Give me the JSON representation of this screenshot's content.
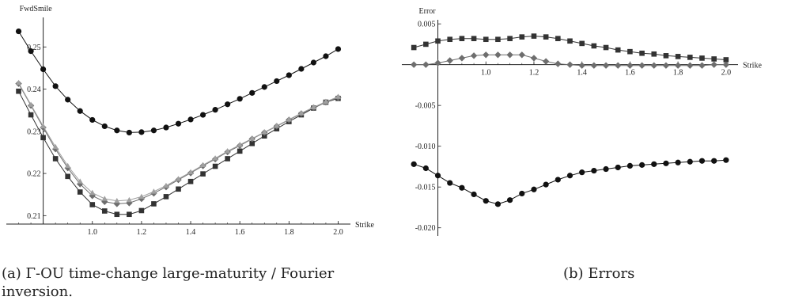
{
  "chart_data": [
    {
      "type": "line",
      "xlabel": "Strike",
      "ylabel": "FwdSmile",
      "xlim": [
        0.65,
        2.05
      ],
      "ylim": [
        0.208,
        0.257
      ],
      "xticks": [
        1.0,
        1.2,
        1.4,
        1.6,
        1.8,
        2.0
      ],
      "xtick_labels": [
        "1.0",
        "1.2",
        "1.4",
        "1.6",
        "1.8",
        "2.0"
      ],
      "yticks": [
        0.21,
        0.22,
        0.23,
        0.24,
        0.25
      ],
      "ytick_labels": [
        "0.21",
        "0.22",
        "0.23",
        "0.24",
        "0.25"
      ],
      "x_cross": 0.8,
      "y_cross": 0.208,
      "series": [
        {
          "marker": "circle",
          "color": "#111111",
          "x": [
            0.7,
            0.75,
            0.8,
            0.85,
            0.9,
            0.95,
            1.0,
            1.05,
            1.1,
            1.15,
            1.2,
            1.25,
            1.3,
            1.35,
            1.4,
            1.45,
            1.5,
            1.55,
            1.6,
            1.65,
            1.7,
            1.75,
            1.8,
            1.85,
            1.9,
            1.95,
            2.0
          ],
          "y": [
            0.2537,
            0.249,
            0.2447,
            0.2407,
            0.2375,
            0.2348,
            0.2327,
            0.2312,
            0.2302,
            0.2297,
            0.2298,
            0.2302,
            0.2309,
            0.2318,
            0.2328,
            0.2339,
            0.2351,
            0.2364,
            0.2377,
            0.2391,
            0.2405,
            0.2419,
            0.2433,
            0.2448,
            0.2463,
            0.2478,
            0.2495
          ]
        },
        {
          "marker": "square",
          "color": "#333333",
          "x": [
            0.7,
            0.75,
            0.8,
            0.85,
            0.9,
            0.95,
            1.0,
            1.05,
            1.1,
            1.15,
            1.2,
            1.25,
            1.3,
            1.35,
            1.4,
            1.45,
            1.5,
            1.55,
            1.6,
            1.65,
            1.7,
            1.75,
            1.8,
            1.85,
            1.9,
            1.95,
            2.0
          ],
          "y": [
            0.2395,
            0.2339,
            0.2285,
            0.2235,
            0.2193,
            0.2156,
            0.2126,
            0.2111,
            0.2103,
            0.2103,
            0.2112,
            0.2128,
            0.2145,
            0.2163,
            0.2181,
            0.2199,
            0.2217,
            0.2235,
            0.2253,
            0.2271,
            0.2289,
            0.2306,
            0.2323,
            0.2339,
            0.2355,
            0.2369,
            0.2378
          ]
        },
        {
          "marker": "diamond",
          "color": "#6e6e6e",
          "x": [
            0.7,
            0.75,
            0.8,
            0.85,
            0.9,
            0.95,
            1.0,
            1.05,
            1.1,
            1.15,
            1.2,
            1.25,
            1.3,
            1.35,
            1.4,
            1.45,
            1.5,
            1.55,
            1.6,
            1.65,
            1.7,
            1.75,
            1.8,
            1.85,
            1.9,
            1.95,
            2.0
          ],
          "y": [
            0.2413,
            0.2361,
            0.2309,
            0.2258,
            0.2213,
            0.2175,
            0.2147,
            0.2133,
            0.2128,
            0.213,
            0.214,
            0.2153,
            0.2168,
            0.2185,
            0.2201,
            0.2218,
            0.2234,
            0.2251,
            0.2266,
            0.2282,
            0.2297,
            0.2312,
            0.2327,
            0.2342,
            0.2356,
            0.2369,
            0.238
          ]
        },
        {
          "marker": "triangle",
          "color": "#a0a0a0",
          "x": [
            0.7,
            0.75,
            0.8,
            0.85,
            0.9,
            0.95,
            1.0,
            1.05,
            1.1,
            1.15,
            1.2,
            1.25,
            1.3,
            1.35,
            1.4,
            1.45,
            1.5,
            1.55,
            1.6,
            1.65,
            1.7,
            1.75,
            1.8,
            1.85,
            1.9,
            1.95,
            2.0
          ],
          "y": [
            0.2415,
            0.2363,
            0.2312,
            0.2263,
            0.2218,
            0.2181,
            0.2154,
            0.214,
            0.2135,
            0.2137,
            0.2145,
            0.2157,
            0.2171,
            0.2187,
            0.2203,
            0.222,
            0.2236,
            0.2253,
            0.2268,
            0.2283,
            0.2298,
            0.2313,
            0.2328,
            0.2343,
            0.2357,
            0.237,
            0.2382
          ]
        }
      ]
    },
    {
      "type": "line",
      "xlabel": "Strike",
      "ylabel": "Error",
      "xlim": [
        0.65,
        2.05
      ],
      "ylim": [
        -0.021,
        0.0055
      ],
      "xticks": [
        1.0,
        1.2,
        1.4,
        1.6,
        1.8,
        2.0
      ],
      "xtick_labels": [
        "1.0",
        "1.2",
        "1.4",
        "1.6",
        "1.8",
        "2.0"
      ],
      "yticks": [
        0.005,
        -0.005,
        -0.01,
        -0.015,
        -0.02
      ],
      "ytick_labels": [
        "0.005",
        "-0.005",
        "-0.010",
        "-0.015",
        "-0.020"
      ],
      "x_cross": 0.8,
      "y_cross": 0.0,
      "series": [
        {
          "marker": "square",
          "color": "#333333",
          "x": [
            0.7,
            0.75,
            0.8,
            0.85,
            0.9,
            0.95,
            1.0,
            1.05,
            1.1,
            1.15,
            1.2,
            1.25,
            1.3,
            1.35,
            1.4,
            1.45,
            1.5,
            1.55,
            1.6,
            1.65,
            1.7,
            1.75,
            1.8,
            1.85,
            1.9,
            1.95,
            2.0
          ],
          "y": [
            0.0021,
            0.0025,
            0.0029,
            0.0031,
            0.0032,
            0.0032,
            0.0031,
            0.0031,
            0.0032,
            0.0034,
            0.0035,
            0.0034,
            0.0032,
            0.0029,
            0.0026,
            0.0023,
            0.0021,
            0.0018,
            0.0016,
            0.0014,
            0.0013,
            0.0011,
            0.001,
            0.0009,
            0.0008,
            0.0007,
            0.0006
          ]
        },
        {
          "marker": "diamond",
          "color": "#6e6e6e",
          "x": [
            0.7,
            0.75,
            0.8,
            0.85,
            0.9,
            0.95,
            1.0,
            1.05,
            1.1,
            1.15,
            1.2,
            1.25,
            1.3,
            1.35,
            1.4,
            1.45,
            1.5,
            1.55,
            1.6,
            1.65,
            1.7,
            1.75,
            1.8,
            1.85,
            1.9,
            1.95,
            2.0
          ],
          "y": [
            0.0,
            0.0,
            0.0002,
            0.0005,
            0.0008,
            0.0011,
            0.0012,
            0.0012,
            0.0012,
            0.0012,
            0.0008,
            0.0004,
            0.0001,
            0.0,
            -0.0001,
            -0.0001,
            -0.0001,
            -0.0001,
            -0.0001,
            -0.0001,
            -0.0001,
            -0.0001,
            -0.0001,
            -0.0001,
            -0.0001,
            0.0,
            0.0
          ]
        },
        {
          "marker": "circle",
          "color": "#111111",
          "x": [
            0.7,
            0.75,
            0.8,
            0.85,
            0.9,
            0.95,
            1.0,
            1.05,
            1.1,
            1.15,
            1.2,
            1.25,
            1.3,
            1.35,
            1.4,
            1.45,
            1.5,
            1.55,
            1.6,
            1.65,
            1.7,
            1.75,
            1.8,
            1.85,
            1.9,
            1.95,
            2.0
          ],
          "y": [
            -0.0122,
            -0.0127,
            -0.0136,
            -0.0145,
            -0.0151,
            -0.0159,
            -0.0167,
            -0.0171,
            -0.0166,
            -0.0158,
            -0.0153,
            -0.0147,
            -0.0141,
            -0.0136,
            -0.0132,
            -0.013,
            -0.0128,
            -0.0126,
            -0.0124,
            -0.0123,
            -0.0122,
            -0.0121,
            -0.012,
            -0.0119,
            -0.0118,
            -0.0118,
            -0.0117
          ]
        }
      ]
    }
  ],
  "captions": {
    "a": {
      "label": "(a)",
      "text": "Γ-OU time-change large-maturity / Fourier inversion."
    },
    "b": {
      "label": "(b)",
      "text": "Errors"
    }
  }
}
